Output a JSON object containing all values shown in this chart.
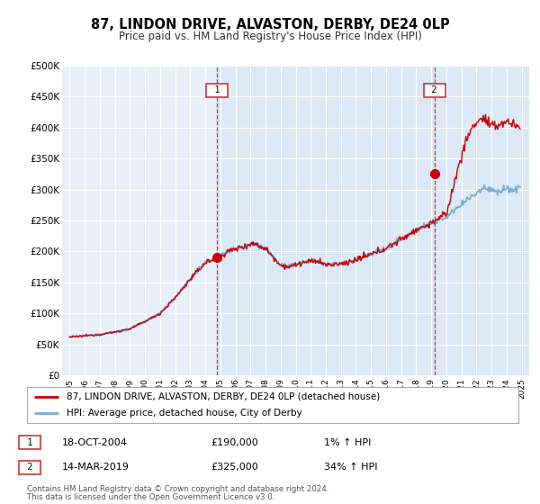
{
  "title": "87, LINDON DRIVE, ALVASTON, DERBY, DE24 0LP",
  "subtitle": "Price paid vs. HM Land Registry's House Price Index (HPI)",
  "title_fontsize": 10.5,
  "subtitle_fontsize": 8.5,
  "background_color": "#ffffff",
  "plot_bg_color": "#dce8f5",
  "plot_bg_left_color": "#e8eff8",
  "grid_color": "#ffffff",
  "red_line_color": "#cc0000",
  "blue_line_color": "#7aafd4",
  "marker_color": "#cc0000",
  "vline_color": "#cc2222",
  "sale1_x": 2004.8,
  "sale1_y": 190000,
  "sale2_x": 2019.2,
  "sale2_y": 325000,
  "sale1_label": "18-OCT-2004",
  "sale1_price": "£190,000",
  "sale1_hpi": "1% ↑ HPI",
  "sale2_label": "14-MAR-2019",
  "sale2_price": "£325,000",
  "sale2_hpi": "34% ↑ HPI",
  "legend_line1": "87, LINDON DRIVE, ALVASTON, DERBY, DE24 0LP (detached house)",
  "legend_line2": "HPI: Average price, detached house, City of Derby",
  "footer1": "Contains HM Land Registry data © Crown copyright and database right 2024.",
  "footer2": "This data is licensed under the Open Government Licence v3.0.",
  "ylim": [
    0,
    500000
  ],
  "yticks": [
    0,
    50000,
    100000,
    150000,
    200000,
    250000,
    300000,
    350000,
    400000,
    450000,
    500000
  ],
  "xlim_start": 1994.5,
  "xlim_end": 2025.5
}
